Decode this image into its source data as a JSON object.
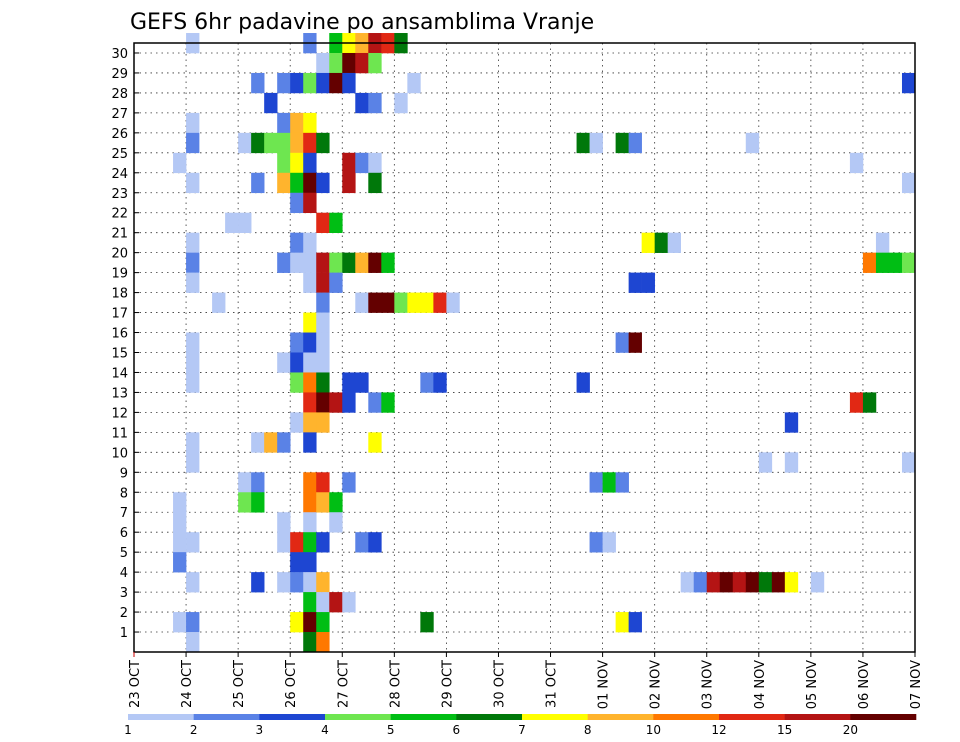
{
  "chart_data": {
    "type": "heatmap",
    "title": "GEFS 6hr padavine po ansamblima Vranje",
    "xlabel": "",
    "ylabel": "",
    "y_members": [
      1,
      2,
      3,
      4,
      5,
      6,
      7,
      8,
      9,
      10,
      11,
      12,
      13,
      14,
      15,
      16,
      17,
      18,
      19,
      20,
      21,
      22,
      23,
      24,
      25,
      26,
      27,
      28,
      29,
      30
    ],
    "x_tick_labels": [
      "23 OCT",
      "24 OCT",
      "25 OCT",
      "26 OCT",
      "27 OCT",
      "28 OCT",
      "29 OCT",
      "30 OCT",
      "31 OCT",
      "01 NOV",
      "02 NOV",
      "03 NOV",
      "04 NOV",
      "05 NOV",
      "06 NOV",
      "07 NOV"
    ],
    "x_step": "6hr",
    "x_steps_total": 60,
    "levels": [
      1,
      2,
      3,
      4,
      5,
      6,
      7,
      8,
      10,
      12,
      15,
      20
    ],
    "legend_labels": [
      "1",
      "2",
      "3",
      "4",
      "5",
      "6",
      "7",
      "8",
      "10",
      "12",
      "15",
      "20"
    ],
    "colors": [
      "#b4c8f5",
      "#5a82e6",
      "#1e46d2",
      "#6ee650",
      "#00be14",
      "#00780a",
      "#ffff00",
      "#ffb42d",
      "#ff7800",
      "#e12814",
      "#b41414",
      "#640000"
    ],
    "grid": "dotted",
    "cells": [
      [
        30,
        4,
        0
      ],
      [
        30,
        13,
        1
      ],
      [
        30,
        15,
        4
      ],
      [
        30,
        16,
        6
      ],
      [
        30,
        17,
        7
      ],
      [
        30,
        18,
        10
      ],
      [
        30,
        19,
        9
      ],
      [
        30,
        20,
        5
      ],
      [
        29,
        14,
        0
      ],
      [
        29,
        15,
        3
      ],
      [
        29,
        16,
        11
      ],
      [
        29,
        17,
        10
      ],
      [
        29,
        18,
        3
      ],
      [
        28,
        9,
        1
      ],
      [
        28,
        11,
        1
      ],
      [
        28,
        12,
        2
      ],
      [
        28,
        13,
        3
      ],
      [
        28,
        14,
        2
      ],
      [
        28,
        15,
        11
      ],
      [
        28,
        16,
        2
      ],
      [
        28,
        21,
        0
      ],
      [
        28,
        59,
        2
      ],
      [
        27,
        10,
        2
      ],
      [
        27,
        17,
        2
      ],
      [
        27,
        18,
        1
      ],
      [
        27,
        20,
        0
      ],
      [
        26,
        4,
        0
      ],
      [
        26,
        11,
        1
      ],
      [
        26,
        12,
        7
      ],
      [
        26,
        13,
        6
      ],
      [
        25,
        4,
        1
      ],
      [
        25,
        8,
        0
      ],
      [
        25,
        9,
        5
      ],
      [
        25,
        10,
        3
      ],
      [
        25,
        11,
        3
      ],
      [
        25,
        12,
        7
      ],
      [
        25,
        13,
        9
      ],
      [
        25,
        14,
        5
      ],
      [
        25,
        34,
        5
      ],
      [
        25,
        35,
        0
      ],
      [
        25,
        37,
        5
      ],
      [
        25,
        38,
        1
      ],
      [
        25,
        47,
        0
      ],
      [
        24,
        3,
        0
      ],
      [
        24,
        11,
        3
      ],
      [
        24,
        12,
        6
      ],
      [
        24,
        13,
        2
      ],
      [
        24,
        16,
        10
      ],
      [
        24,
        17,
        1
      ],
      [
        24,
        18,
        0
      ],
      [
        24,
        55,
        0
      ],
      [
        23,
        4,
        0
      ],
      [
        23,
        9,
        1
      ],
      [
        23,
        11,
        7
      ],
      [
        23,
        12,
        4
      ],
      [
        23,
        13,
        11
      ],
      [
        23,
        14,
        2
      ],
      [
        23,
        16,
        10
      ],
      [
        23,
        18,
        5
      ],
      [
        23,
        59,
        0
      ],
      [
        22,
        12,
        1
      ],
      [
        22,
        13,
        10
      ],
      [
        21,
        7,
        0
      ],
      [
        21,
        8,
        0
      ],
      [
        21,
        14,
        9
      ],
      [
        21,
        15,
        4
      ],
      [
        20,
        4,
        0
      ],
      [
        20,
        12,
        1
      ],
      [
        20,
        13,
        0
      ],
      [
        20,
        39,
        6
      ],
      [
        20,
        40,
        5
      ],
      [
        20,
        41,
        0
      ],
      [
        20,
        57,
        0
      ],
      [
        19,
        4,
        1
      ],
      [
        19,
        11,
        1
      ],
      [
        19,
        12,
        0
      ],
      [
        19,
        13,
        0
      ],
      [
        19,
        14,
        10
      ],
      [
        19,
        15,
        3
      ],
      [
        19,
        16,
        5
      ],
      [
        19,
        17,
        7
      ],
      [
        19,
        18,
        11
      ],
      [
        19,
        19,
        4
      ],
      [
        19,
        56,
        8
      ],
      [
        19,
        57,
        4
      ],
      [
        19,
        58,
        4
      ],
      [
        19,
        59,
        3
      ],
      [
        18,
        4,
        0
      ],
      [
        18,
        13,
        0
      ],
      [
        18,
        14,
        10
      ],
      [
        18,
        15,
        1
      ],
      [
        18,
        38,
        2
      ],
      [
        18,
        39,
        2
      ],
      [
        17,
        6,
        0
      ],
      [
        17,
        14,
        1
      ],
      [
        17,
        17,
        0
      ],
      [
        17,
        18,
        11
      ],
      [
        17,
        19,
        11
      ],
      [
        17,
        20,
        3
      ],
      [
        17,
        21,
        6
      ],
      [
        17,
        22,
        6
      ],
      [
        17,
        23,
        9
      ],
      [
        17,
        24,
        0
      ],
      [
        16,
        13,
        6
      ],
      [
        16,
        14,
        0
      ],
      [
        15,
        4,
        0
      ],
      [
        15,
        12,
        1
      ],
      [
        15,
        13,
        2
      ],
      [
        15,
        14,
        0
      ],
      [
        15,
        37,
        1
      ],
      [
        15,
        38,
        11
      ],
      [
        14,
        4,
        0
      ],
      [
        14,
        11,
        0
      ],
      [
        14,
        12,
        2
      ],
      [
        14,
        13,
        0
      ],
      [
        14,
        14,
        0
      ],
      [
        13,
        4,
        0
      ],
      [
        13,
        12,
        3
      ],
      [
        13,
        13,
        8
      ],
      [
        13,
        14,
        5
      ],
      [
        13,
        16,
        2
      ],
      [
        13,
        17,
        2
      ],
      [
        13,
        22,
        1
      ],
      [
        13,
        23,
        2
      ],
      [
        13,
        34,
        2
      ],
      [
        12,
        13,
        9
      ],
      [
        12,
        14,
        11
      ],
      [
        12,
        15,
        10
      ],
      [
        12,
        16,
        2
      ],
      [
        12,
        18,
        1
      ],
      [
        12,
        19,
        4
      ],
      [
        12,
        55,
        9
      ],
      [
        12,
        56,
        5
      ],
      [
        11,
        12,
        0
      ],
      [
        11,
        13,
        7
      ],
      [
        11,
        14,
        7
      ],
      [
        11,
        50,
        2
      ],
      [
        10,
        4,
        0
      ],
      [
        10,
        9,
        0
      ],
      [
        10,
        10,
        7
      ],
      [
        10,
        11,
        1
      ],
      [
        10,
        13,
        2
      ],
      [
        10,
        18,
        6
      ],
      [
        9,
        4,
        0
      ],
      [
        9,
        48,
        0
      ],
      [
        9,
        50,
        0
      ],
      [
        9,
        59,
        0
      ],
      [
        8,
        8,
        0
      ],
      [
        8,
        9,
        1
      ],
      [
        8,
        13,
        8
      ],
      [
        8,
        14,
        9
      ],
      [
        8,
        16,
        1
      ],
      [
        8,
        35,
        1
      ],
      [
        8,
        36,
        4
      ],
      [
        8,
        37,
        1
      ],
      [
        7,
        3,
        0
      ],
      [
        7,
        8,
        3
      ],
      [
        7,
        9,
        4
      ],
      [
        7,
        13,
        8
      ],
      [
        7,
        14,
        7
      ],
      [
        7,
        15,
        4
      ],
      [
        6,
        3,
        0
      ],
      [
        6,
        11,
        0
      ],
      [
        6,
        13,
        0
      ],
      [
        6,
        15,
        0
      ],
      [
        5,
        3,
        0
      ],
      [
        5,
        4,
        0
      ],
      [
        5,
        11,
        0
      ],
      [
        5,
        12,
        9
      ],
      [
        5,
        13,
        4
      ],
      [
        5,
        14,
        2
      ],
      [
        5,
        17,
        1
      ],
      [
        5,
        18,
        2
      ],
      [
        5,
        35,
        1
      ],
      [
        5,
        36,
        0
      ],
      [
        4,
        3,
        1
      ],
      [
        4,
        12,
        2
      ],
      [
        4,
        13,
        2
      ],
      [
        3,
        4,
        0
      ],
      [
        3,
        9,
        2
      ],
      [
        3,
        11,
        0
      ],
      [
        3,
        12,
        1
      ],
      [
        3,
        13,
        0
      ],
      [
        3,
        14,
        7
      ],
      [
        3,
        42,
        0
      ],
      [
        3,
        43,
        1
      ],
      [
        3,
        44,
        10
      ],
      [
        3,
        45,
        11
      ],
      [
        3,
        46,
        10
      ],
      [
        3,
        47,
        11
      ],
      [
        3,
        48,
        5
      ],
      [
        3,
        49,
        11
      ],
      [
        3,
        50,
        6
      ],
      [
        3,
        52,
        0
      ],
      [
        2,
        13,
        4
      ],
      [
        2,
        14,
        0
      ],
      [
        2,
        15,
        10
      ],
      [
        2,
        16,
        0
      ],
      [
        1,
        3,
        0
      ],
      [
        1,
        4,
        1
      ],
      [
        1,
        12,
        6
      ],
      [
        1,
        13,
        11
      ],
      [
        1,
        14,
        4
      ],
      [
        1,
        22,
        5
      ],
      [
        1,
        37,
        6
      ],
      [
        1,
        38,
        2
      ],
      [
        0,
        4,
        0
      ],
      [
        0,
        13,
        5
      ],
      [
        0,
        14,
        8
      ]
    ]
  }
}
